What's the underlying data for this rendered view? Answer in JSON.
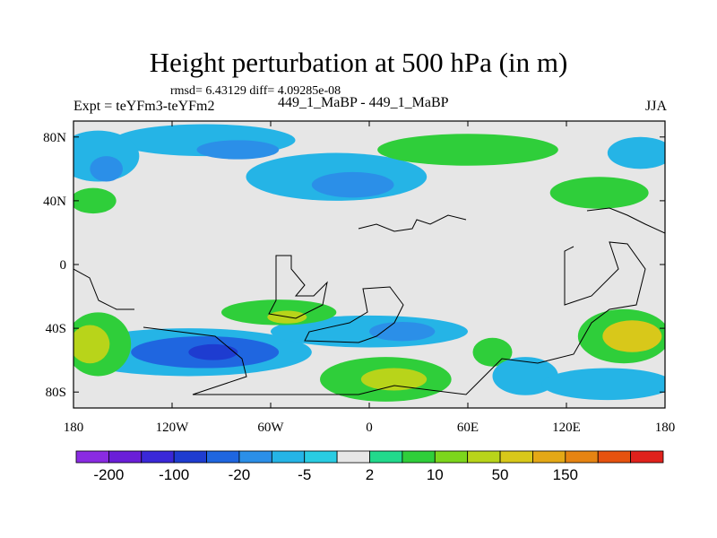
{
  "header": {
    "title": "Height perturbation at 500 hPa (in m)",
    "stats": "rmsd= 6.43129 diff= 4.09285e-08",
    "left_label": "Expt = teYFm3-teYFm2",
    "center_label": "449_1_MaBP - 449_1_MaBP",
    "right_label": "JJA"
  },
  "chart_data": {
    "type": "heatmap",
    "title": "Height perturbation at 500 hPa (in m)",
    "subtitle": "rmsd= 6.43129 diff= 4.09285e-08",
    "xlabel": "",
    "ylabel": "",
    "xlim": [
      -180,
      180
    ],
    "ylim": [
      -90,
      90
    ],
    "x_ticks": [
      {
        "value": -180,
        "label": "180"
      },
      {
        "value": -120,
        "label": "120W"
      },
      {
        "value": -60,
        "label": "60W"
      },
      {
        "value": 0,
        "label": "0"
      },
      {
        "value": 60,
        "label": "60E"
      },
      {
        "value": 120,
        "label": "120E"
      },
      {
        "value": 180,
        "label": "180"
      }
    ],
    "y_ticks": [
      {
        "value": 80,
        "label": "80N"
      },
      {
        "value": 40,
        "label": "40N"
      },
      {
        "value": 0,
        "label": "0"
      },
      {
        "value": -40,
        "label": "40S"
      },
      {
        "value": -80,
        "label": "80S"
      }
    ],
    "colorbar": {
      "colors": [
        "#8a2be2",
        "#6a1ed8",
        "#3a28d8",
        "#1e3cd0",
        "#1f66e0",
        "#2b8fe8",
        "#25b4e6",
        "#29cce2",
        "#e6e6e6",
        "#22d98c",
        "#2fce3a",
        "#7cd61c",
        "#b8d41a",
        "#d8c81a",
        "#e4a816",
        "#e68412",
        "#e6520f",
        "#e0221c"
      ],
      "labels": [
        {
          "boundary": 1,
          "text": "-200"
        },
        {
          "boundary": 3,
          "text": "-100"
        },
        {
          "boundary": 5,
          "text": "-20"
        },
        {
          "boundary": 7,
          "text": "-5"
        },
        {
          "boundary": 9,
          "text": "2"
        },
        {
          "boundary": 11,
          "text": "10"
        },
        {
          "boundary": 13,
          "text": "50"
        },
        {
          "boundary": 15,
          "text": "150"
        }
      ]
    },
    "regions": [
      {
        "name": "arctic-negative",
        "level": "-5",
        "lon": -100,
        "lat": 78,
        "rlon": 55,
        "rlat": 10,
        "color": "#25b4e6"
      },
      {
        "name": "arctic-negative-core",
        "level": "-20",
        "lon": -80,
        "lat": 72,
        "rlon": 25,
        "rlat": 6,
        "color": "#2b8fe8"
      },
      {
        "name": "npacific-negative",
        "level": "-5",
        "lon": -165,
        "lat": 68,
        "rlon": 25,
        "rlat": 16,
        "color": "#25b4e6"
      },
      {
        "name": "npacific-negative-core",
        "level": "-20",
        "lon": -160,
        "lat": 60,
        "rlon": 10,
        "rlat": 8,
        "color": "#2b8fe8"
      },
      {
        "name": "natlantic-negative",
        "level": "-5",
        "lon": -20,
        "lat": 55,
        "rlon": 55,
        "rlat": 15,
        "color": "#25b4e6"
      },
      {
        "name": "natlantic-negative-core",
        "level": "-20",
        "lon": -10,
        "lat": 50,
        "rlon": 25,
        "rlat": 8,
        "color": "#2b8fe8"
      },
      {
        "name": "nwpacific-positive",
        "level": "10",
        "lon": -168,
        "lat": 40,
        "rlon": 14,
        "rlat": 8,
        "color": "#2fce3a"
      },
      {
        "name": "eurasia-positive",
        "level": "10",
        "lon": 60,
        "lat": 72,
        "rlon": 55,
        "rlat": 10,
        "color": "#2fce3a"
      },
      {
        "name": "asia-positive",
        "level": "10",
        "lon": 140,
        "lat": 45,
        "rlon": 30,
        "rlat": 10,
        "color": "#2fce3a"
      },
      {
        "name": "asia-negative",
        "level": "-5",
        "lon": 165,
        "lat": 70,
        "rlon": 20,
        "rlat": 10,
        "color": "#25b4e6"
      },
      {
        "name": "spacific-negative",
        "level": "-5",
        "lon": -110,
        "lat": -55,
        "rlon": 75,
        "rlat": 15,
        "color": "#25b4e6"
      },
      {
        "name": "spacific-negative-core",
        "level": "-20",
        "lon": -100,
        "lat": -55,
        "rlon": 45,
        "rlat": 10,
        "color": "#1f66e0"
      },
      {
        "name": "spacific-negative-peak",
        "level": "-100",
        "lon": -95,
        "lat": -55,
        "rlon": 15,
        "rlat": 5,
        "color": "#1e3cd0"
      },
      {
        "name": "satlantic-negative",
        "level": "-5",
        "lon": 0,
        "lat": -42,
        "rlon": 60,
        "rlat": 10,
        "color": "#25b4e6"
      },
      {
        "name": "satlantic-negative-core",
        "level": "-20",
        "lon": 20,
        "lat": -42,
        "rlon": 20,
        "rlat": 6,
        "color": "#2b8fe8"
      },
      {
        "name": "west-positive",
        "level": "10",
        "lon": -165,
        "lat": -50,
        "rlon": 20,
        "rlat": 20,
        "color": "#2fce3a"
      },
      {
        "name": "west-positive-core",
        "level": "50",
        "lon": -170,
        "lat": -50,
        "rlon": 12,
        "rlat": 12,
        "color": "#b8d41a"
      },
      {
        "name": "samerica-positive",
        "level": "10",
        "lon": -55,
        "lat": -30,
        "rlon": 35,
        "rlat": 8,
        "color": "#2fce3a"
      },
      {
        "name": "samerica-positive-core",
        "level": "50",
        "lon": -50,
        "lat": -33,
        "rlon": 12,
        "rlat": 4,
        "color": "#b8d41a"
      },
      {
        "name": "satlantic-positive",
        "level": "10",
        "lon": 10,
        "lat": -72,
        "rlon": 40,
        "rlat": 14,
        "color": "#2fce3a"
      },
      {
        "name": "satlantic-positive-core",
        "level": "50",
        "lon": 15,
        "lat": -72,
        "rlon": 20,
        "rlat": 7,
        "color": "#b8d41a"
      },
      {
        "name": "africa-positive",
        "level": "10",
        "lon": 75,
        "lat": -55,
        "rlon": 12,
        "rlat": 9,
        "color": "#2fce3a"
      },
      {
        "name": "sindian-negative",
        "level": "-5",
        "lon": 95,
        "lat": -70,
        "rlon": 20,
        "rlat": 12,
        "color": "#25b4e6"
      },
      {
        "name": "australia-positive",
        "level": "10",
        "lon": 155,
        "lat": -45,
        "rlon": 28,
        "rlat": 17,
        "color": "#2fce3a"
      },
      {
        "name": "australia-positive-core",
        "level": "50",
        "lon": 160,
        "lat": -45,
        "rlon": 18,
        "rlat": 10,
        "color": "#d8c81a"
      },
      {
        "name": "sw-pacific-negative",
        "level": "-5",
        "lon": 145,
        "lat": -75,
        "rlon": 40,
        "rlat": 10,
        "color": "#25b4e6"
      }
    ]
  }
}
